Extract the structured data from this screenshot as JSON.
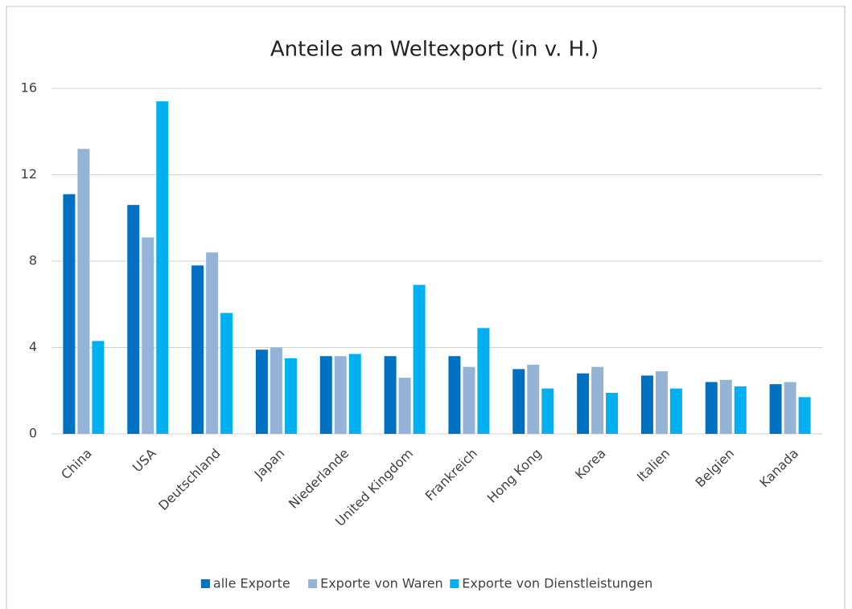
{
  "chart_data": {
    "type": "bar",
    "title": "Anteile am Weltexport (in v. H.)",
    "categories": [
      "China",
      "USA",
      "Deutschland",
      "Japan",
      "Niederlande",
      "United Kingdom",
      "Frankreich",
      "Hong Kong",
      "Korea",
      "Italien",
      "Belgien",
      "Kanada"
    ],
    "series": [
      {
        "name": "alle Exporte",
        "color": "#0070c0",
        "values": [
          11.1,
          10.6,
          7.8,
          3.9,
          3.6,
          3.6,
          3.6,
          3.0,
          2.8,
          2.7,
          2.4,
          2.3
        ]
      },
      {
        "name": "Exporte von Waren",
        "color": "#95b3d7",
        "values": [
          13.2,
          9.1,
          8.4,
          4.0,
          3.6,
          2.6,
          3.1,
          3.2,
          3.1,
          2.9,
          2.5,
          2.4
        ]
      },
      {
        "name": "Exporte von Dienstleistungen",
        "color": "#00b0f0",
        "values": [
          4.3,
          15.4,
          5.6,
          3.5,
          3.7,
          6.9,
          4.9,
          2.1,
          1.9,
          2.1,
          2.2,
          1.7
        ]
      }
    ],
    "ylim": [
      0,
      16
    ],
    "yticks": [
      0,
      4,
      8,
      12,
      16
    ],
    "grid": true,
    "legend": "bottom"
  }
}
